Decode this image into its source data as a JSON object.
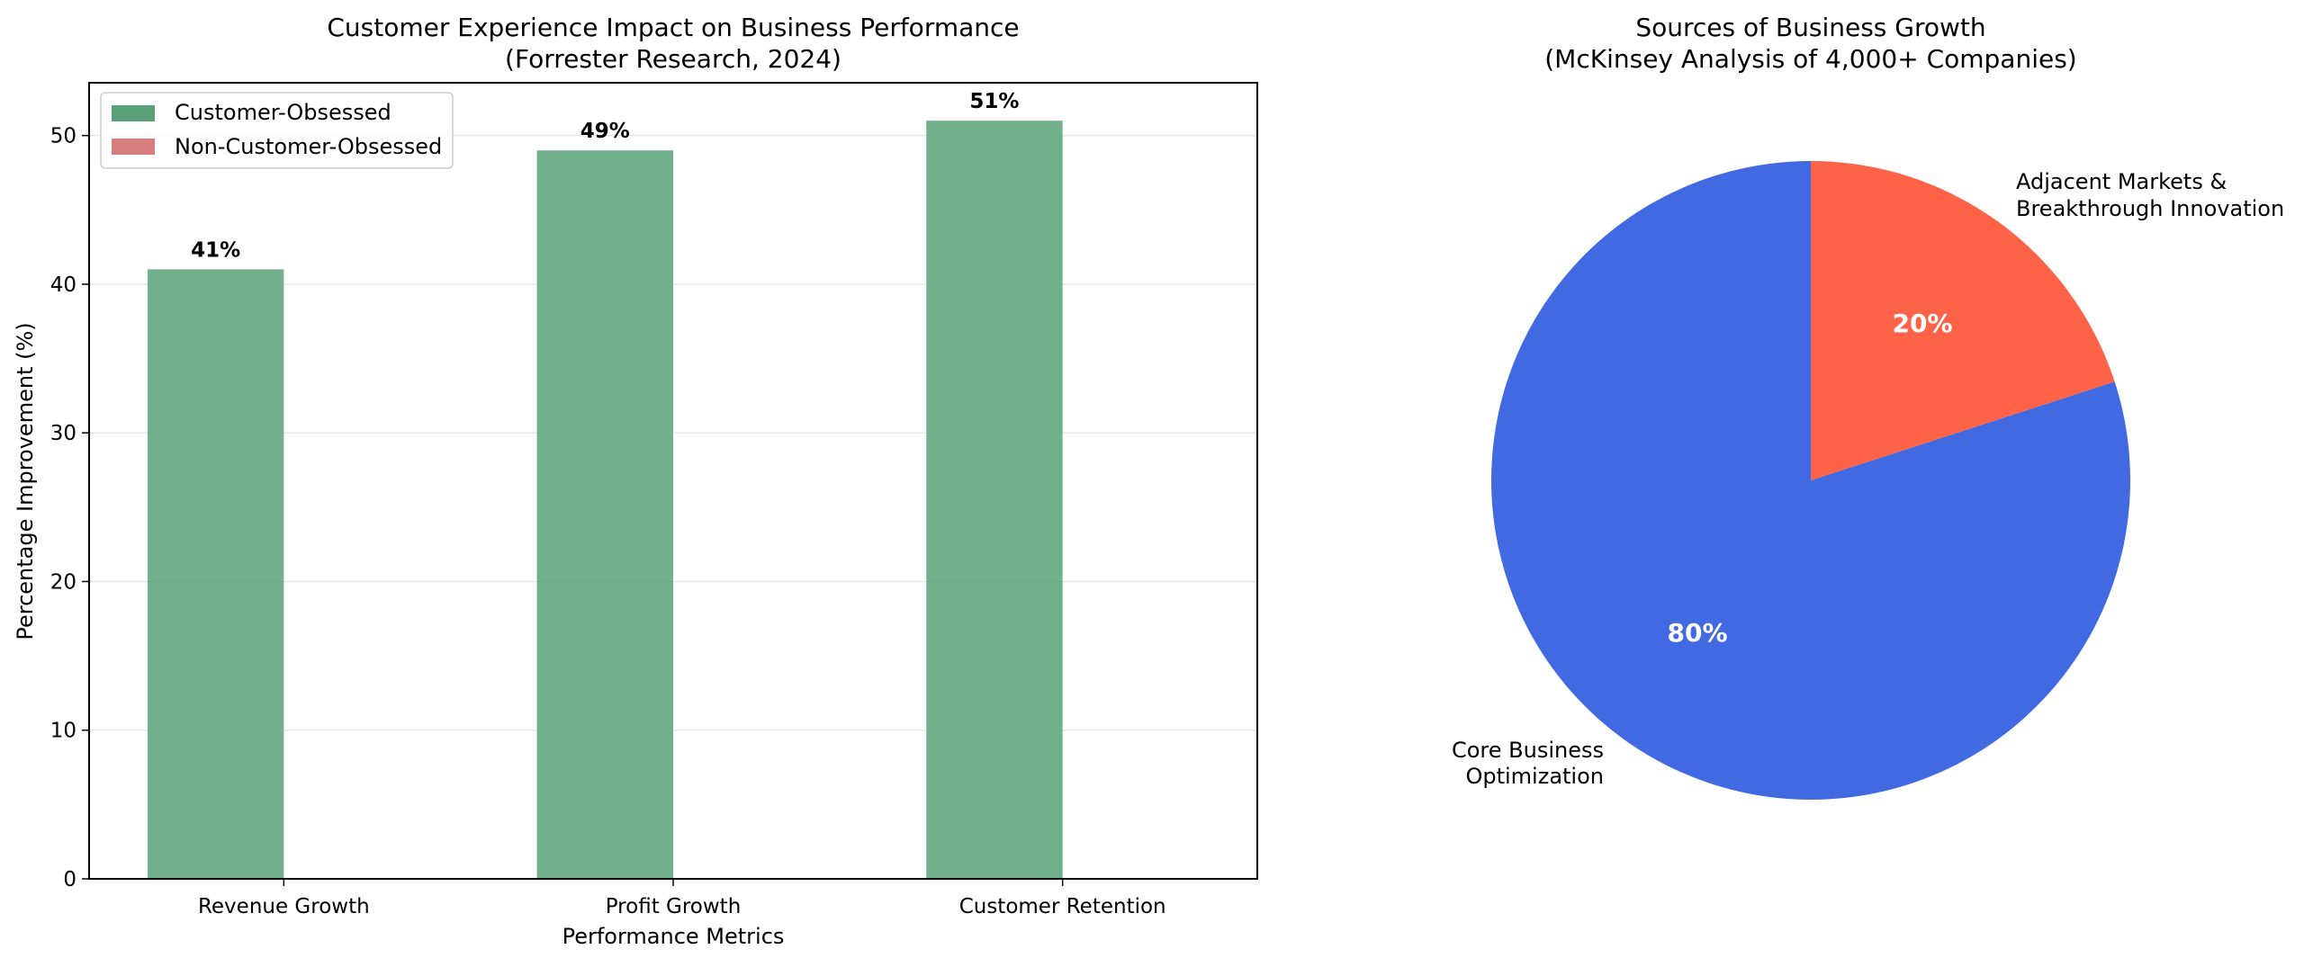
{
  "chart_data": [
    {
      "type": "bar",
      "title_lines": [
        "Customer Experience Impact on Business Performance",
        "(Forrester Research, 2024)"
      ],
      "xlabel": "Performance Metrics",
      "ylabel": "Percentage Improvement (%)",
      "categories": [
        "Revenue Growth",
        "Profit Growth",
        "Customer Retention"
      ],
      "series": [
        {
          "name": "Customer-Obsessed",
          "values": [
            41,
            49,
            51
          ],
          "color": "#59A278",
          "labels": [
            "41%",
            "49%",
            "51%"
          ]
        },
        {
          "name": "Non-Customer-Obsessed",
          "values": [
            0,
            0,
            0
          ],
          "color": "#D67D7D"
        }
      ],
      "ylim": [
        0,
        53.55
      ],
      "yticks": [
        0,
        10,
        20,
        30,
        40,
        50
      ],
      "grid": "y",
      "legend": "top-left"
    },
    {
      "type": "pie",
      "title_lines": [
        "Sources of Business Growth",
        "(McKinsey Analysis of 4,000+ Companies)"
      ],
      "slices": [
        {
          "label_lines": [
            "Core Business",
            "Optimization"
          ],
          "value": 80,
          "pct": "80%",
          "color": "#4169E1"
        },
        {
          "label_lines": [
            "Adjacent Markets &",
            "Breakthrough Innovation"
          ],
          "value": 20,
          "pct": "20%",
          "color": "#FF6347"
        }
      ],
      "start_angle": 90,
      "direction": "counterclockwise"
    }
  ]
}
